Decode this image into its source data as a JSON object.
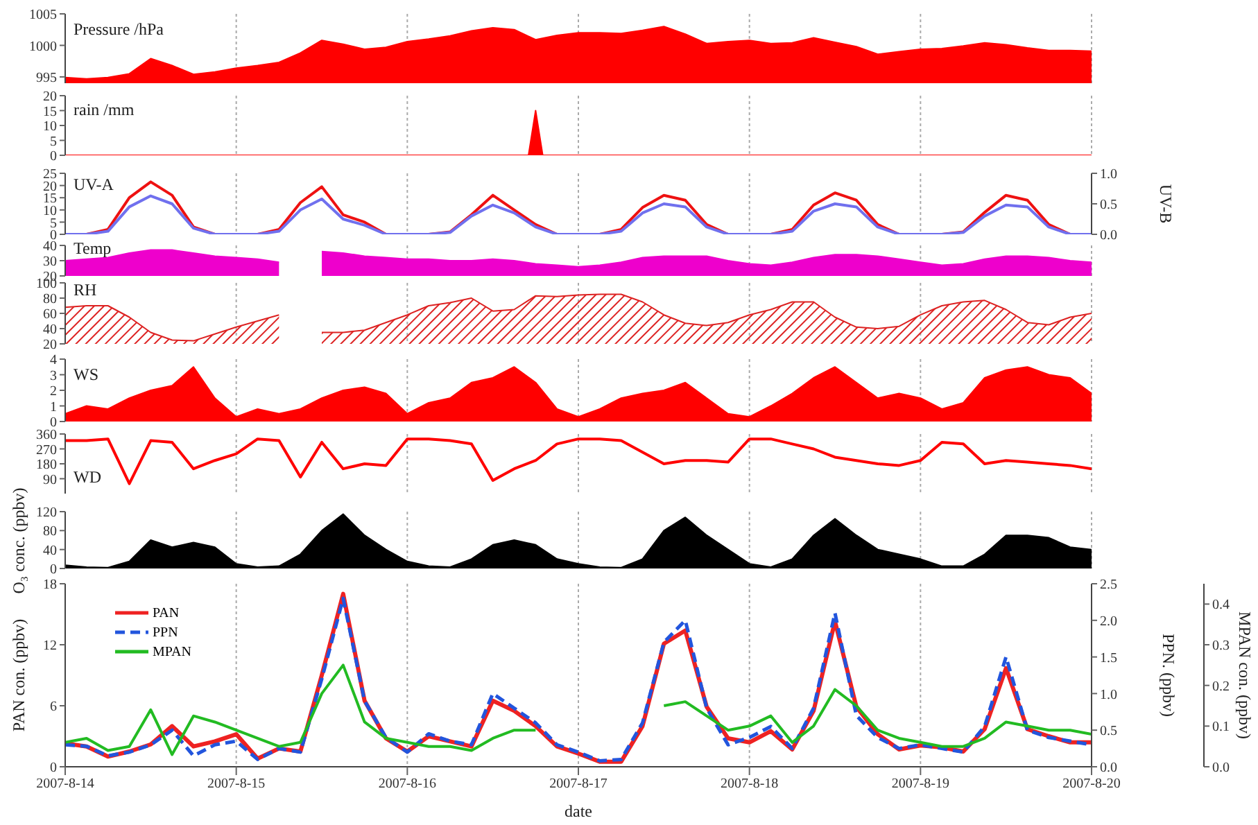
{
  "chart_data": [
    {
      "type": "area",
      "ylabel": "Pressure /hPa",
      "tick_labels": "y",
      "grid": "x",
      "xlim": [
        "2007-08-14",
        "2007-08-20"
      ],
      "xticks": [
        {
          "value": "2007-08-14",
          "label": null
        },
        {
          "value": "2007-08-15",
          "label": null
        },
        {
          "value": "2007-08-16",
          "label": null
        },
        {
          "value": "2007-08-17",
          "label": null
        },
        {
          "value": "2007-08-18",
          "label": null
        },
        {
          "value": "2007-08-19",
          "label": null
        },
        {
          "value": "2007-08-20",
          "label": null
        }
      ],
      "ylim": [
        994,
        1005
      ],
      "yticks": [
        995,
        1000,
        1005
      ],
      "x": [
        "2007-08-14T00:00",
        "2007-08-14T03:00",
        "2007-08-14T06:00",
        "2007-08-14T09:00",
        "2007-08-14T12:00",
        "2007-08-14T15:00",
        "2007-08-14T18:00",
        "2007-08-14T21:00",
        "2007-08-15T00:00",
        "2007-08-15T03:00",
        "2007-08-15T06:00",
        "2007-08-15T09:00",
        "2007-08-15T12:00",
        "2007-08-15T15:00",
        "2007-08-15T18:00",
        "2007-08-15T21:00",
        "2007-08-16T00:00",
        "2007-08-16T03:00",
        "2007-08-16T06:00",
        "2007-08-16T09:00",
        "2007-08-16T12:00",
        "2007-08-16T15:00",
        "2007-08-16T18:00",
        "2007-08-16T21:00",
        "2007-08-17T00:00",
        "2007-08-17T03:00",
        "2007-08-17T06:00",
        "2007-08-17T09:00",
        "2007-08-17T12:00",
        "2007-08-17T15:00",
        "2007-08-17T18:00",
        "2007-08-17T21:00",
        "2007-08-18T00:00",
        "2007-08-18T03:00",
        "2007-08-18T06:00",
        "2007-08-18T09:00",
        "2007-08-18T12:00",
        "2007-08-18T15:00",
        "2007-08-18T18:00",
        "2007-08-18T21:00",
        "2007-08-19T00:00",
        "2007-08-19T03:00",
        "2007-08-19T06:00",
        "2007-08-19T09:00",
        "2007-08-19T12:00",
        "2007-08-19T15:00",
        "2007-08-19T18:00",
        "2007-08-19T21:00",
        "2007-08-20T00:00"
      ],
      "series": [
        {
          "color": "#ff0000",
          "values": [
            994.9,
            994.7,
            994.9,
            995.5,
            997.9,
            996.8,
            995.4,
            995.8,
            996.4,
            996.8,
            997.3,
            998.8,
            1000.8,
            1000.2,
            999.4,
            999.7,
            1000.6,
            1001.0,
            1001.5,
            1002.3,
            1002.8,
            1002.5,
            1000.9,
            1001.6,
            1002.0,
            1002.0,
            1001.9,
            1002.4,
            1003.0,
            1001.8,
            1000.3,
            1000.6,
            1000.8,
            1000.3,
            1000.4,
            1001.2,
            1000.5,
            999.8,
            998.6,
            999.0,
            999.4,
            999.5,
            999.9,
            1000.4,
            1000.1,
            999.6,
            999.2,
            999.2,
            999.1
          ]
        }
      ]
    },
    {
      "type": "area",
      "ylabel": "rain /mm",
      "tick_labels": "y",
      "grid": "x",
      "xlim": [
        "2007-08-14",
        "2007-08-20"
      ],
      "xticks": [
        {
          "value": "2007-08-14",
          "label": null
        },
        {
          "value": "2007-08-15",
          "label": null
        },
        {
          "value": "2007-08-16",
          "label": null
        },
        {
          "value": "2007-08-17",
          "label": null
        },
        {
          "value": "2007-08-18",
          "label": null
        },
        {
          "value": "2007-08-19",
          "label": null
        },
        {
          "value": "2007-08-20",
          "label": null
        }
      ],
      "ylim": [
        0,
        20
      ],
      "yticks": [
        0,
        5,
        10,
        15,
        20
      ],
      "x": [
        "2007-08-14T00:00",
        "2007-08-16T17:00",
        "2007-08-16T18:00",
        "2007-08-16T19:00",
        "2007-08-20T00:00"
      ],
      "series": [
        {
          "color": "#ff0000",
          "values": [
            0,
            0,
            15,
            0,
            0
          ]
        }
      ]
    },
    {
      "type": "line",
      "ylabel": "UV-A",
      "y2label": "UV-B",
      "tick_labels": "y",
      "grid": "x",
      "xlim": [
        "2007-08-14",
        "2007-08-20"
      ],
      "xticks": [
        {
          "value": "2007-08-14",
          "label": null
        },
        {
          "value": "2007-08-15",
          "label": null
        },
        {
          "value": "2007-08-16",
          "label": null
        },
        {
          "value": "2007-08-17",
          "label": null
        },
        {
          "value": "2007-08-18",
          "label": null
        },
        {
          "value": "2007-08-19",
          "label": null
        },
        {
          "value": "2007-08-20",
          "label": null
        }
      ],
      "ylim": [
        0,
        25
      ],
      "yticks": [
        0,
        5,
        10,
        15,
        20,
        25
      ],
      "y2lim": [
        0,
        1
      ],
      "y2ticks": [
        {
          "value": 0,
          "label": "0.0"
        },
        {
          "value": 0.5,
          "label": "0.5"
        },
        {
          "value": 1,
          "label": "1.0"
        }
      ],
      "x": [
        "2007-08-14T00:00",
        "2007-08-14T03:00",
        "2007-08-14T06:00",
        "2007-08-14T09:00",
        "2007-08-14T12:00",
        "2007-08-14T15:00",
        "2007-08-14T18:00",
        "2007-08-14T21:00",
        "2007-08-15T00:00",
        "2007-08-15T03:00",
        "2007-08-15T06:00",
        "2007-08-15T09:00",
        "2007-08-15T12:00",
        "2007-08-15T15:00",
        "2007-08-15T18:00",
        "2007-08-15T21:00",
        "2007-08-16T00:00",
        "2007-08-16T03:00",
        "2007-08-16T06:00",
        "2007-08-16T09:00",
        "2007-08-16T12:00",
        "2007-08-16T15:00",
        "2007-08-16T18:00",
        "2007-08-16T21:00",
        "2007-08-17T00:00",
        "2007-08-17T03:00",
        "2007-08-17T06:00",
        "2007-08-17T09:00",
        "2007-08-17T12:00",
        "2007-08-17T15:00",
        "2007-08-17T18:00",
        "2007-08-17T21:00",
        "2007-08-18T00:00",
        "2007-08-18T03:00",
        "2007-08-18T06:00",
        "2007-08-18T09:00",
        "2007-08-18T12:00",
        "2007-08-18T15:00",
        "2007-08-18T18:00",
        "2007-08-18T21:00",
        "2007-08-19T00:00",
        "2007-08-19T03:00",
        "2007-08-19T06:00",
        "2007-08-19T09:00",
        "2007-08-19T12:00",
        "2007-08-19T15:00",
        "2007-08-19T18:00",
        "2007-08-19T21:00",
        "2007-08-20T00:00"
      ],
      "series": [
        {
          "color": "#ee1111",
          "values": [
            0,
            0,
            2,
            15,
            21.5,
            16,
            3,
            0,
            0,
            0,
            2,
            13,
            19.5,
            8,
            5,
            0,
            0,
            0,
            1,
            8,
            16,
            10,
            4,
            0,
            0,
            0,
            2,
            11,
            16,
            14,
            4,
            0,
            0,
            0,
            2,
            12,
            17,
            14,
            4,
            0,
            0,
            0,
            1,
            9,
            16,
            14,
            4,
            0,
            0
          ]
        },
        {
          "color": "#7070ee",
          "axis": "y2",
          "values": [
            0,
            0,
            0.05,
            0.45,
            0.63,
            0.5,
            0.1,
            0,
            0,
            0,
            0.05,
            0.4,
            0.58,
            0.25,
            0.15,
            0,
            0,
            0,
            0.03,
            0.3,
            0.48,
            0.35,
            0.12,
            0,
            0,
            0,
            0.05,
            0.35,
            0.5,
            0.45,
            0.12,
            0,
            0,
            0,
            0.05,
            0.38,
            0.5,
            0.45,
            0.12,
            0,
            0,
            0,
            0.03,
            0.3,
            0.48,
            0.45,
            0.12,
            0,
            0
          ]
        }
      ]
    },
    {
      "type": "area",
      "ylabel": "Temp",
      "tick_labels": "y",
      "grid": "x",
      "xlim": [
        "2007-08-14",
        "2007-08-20"
      ],
      "xticks": [
        {
          "value": "2007-08-14",
          "label": null
        },
        {
          "value": "2007-08-15",
          "label": null
        },
        {
          "value": "2007-08-16",
          "label": null
        },
        {
          "value": "2007-08-17",
          "label": null
        },
        {
          "value": "2007-08-18",
          "label": null
        },
        {
          "value": "2007-08-19",
          "label": null
        },
        {
          "value": "2007-08-20",
          "label": null
        }
      ],
      "ylim": [
        20,
        40
      ],
      "yticks": [
        20,
        30,
        40
      ],
      "x": [
        "2007-08-14T00:00",
        "2007-08-14T03:00",
        "2007-08-14T06:00",
        "2007-08-14T09:00",
        "2007-08-14T12:00",
        "2007-08-14T15:00",
        "2007-08-14T18:00",
        "2007-08-14T21:00",
        "2007-08-15T00:00",
        "2007-08-15T03:00",
        "2007-08-15T06:00",
        "2007-08-15T09:00",
        "2007-08-15T12:00",
        "2007-08-15T15:00",
        "2007-08-15T18:00",
        "2007-08-15T21:00",
        "2007-08-16T00:00",
        "2007-08-16T03:00",
        "2007-08-16T06:00",
        "2007-08-16T09:00",
        "2007-08-16T12:00",
        "2007-08-16T15:00",
        "2007-08-16T18:00",
        "2007-08-16T21:00",
        "2007-08-17T00:00",
        "2007-08-17T03:00",
        "2007-08-17T06:00",
        "2007-08-17T09:00",
        "2007-08-17T12:00",
        "2007-08-17T15:00",
        "2007-08-17T18:00",
        "2007-08-17T21:00",
        "2007-08-18T00:00",
        "2007-08-18T03:00",
        "2007-08-18T06:00",
        "2007-08-18T09:00",
        "2007-08-18T12:00",
        "2007-08-18T15:00",
        "2007-08-18T18:00",
        "2007-08-18T21:00",
        "2007-08-19T00:00",
        "2007-08-19T03:00",
        "2007-08-19T06:00",
        "2007-08-19T09:00",
        "2007-08-19T12:00",
        "2007-08-19T15:00",
        "2007-08-19T18:00",
        "2007-08-19T21:00",
        "2007-08-20T00:00"
      ],
      "series": [
        {
          "color": "#ee00cc",
          "values": [
            30,
            31,
            32,
            35,
            37,
            37,
            35,
            33,
            32,
            31,
            29,
            null,
            36,
            35,
            33,
            32,
            31,
            31,
            30,
            30,
            31,
            30,
            28,
            27,
            26,
            27,
            29,
            32,
            33,
            33,
            33,
            30,
            28,
            27,
            29,
            32,
            34,
            34,
            33,
            31,
            29,
            27,
            28,
            31,
            33,
            33,
            32,
            30,
            29
          ]
        }
      ]
    },
    {
      "type": "area",
      "ylabel": "RH",
      "tick_labels": "y",
      "grid": "x",
      "xlim": [
        "2007-08-14",
        "2007-08-20"
      ],
      "xticks": [
        {
          "value": "2007-08-14",
          "label": null
        },
        {
          "value": "2007-08-15",
          "label": null
        },
        {
          "value": "2007-08-16",
          "label": null
        },
        {
          "value": "2007-08-17",
          "label": null
        },
        {
          "value": "2007-08-18",
          "label": null
        },
        {
          "value": "2007-08-19",
          "label": null
        },
        {
          "value": "2007-08-20",
          "label": null
        }
      ],
      "ylim": [
        20,
        100
      ],
      "yticks": [
        20,
        40,
        60,
        80,
        100
      ],
      "x": [
        "2007-08-14T00:00",
        "2007-08-14T03:00",
        "2007-08-14T06:00",
        "2007-08-14T09:00",
        "2007-08-14T12:00",
        "2007-08-14T15:00",
        "2007-08-14T18:00",
        "2007-08-14T21:00",
        "2007-08-15T00:00",
        "2007-08-15T03:00",
        "2007-08-15T06:00",
        "2007-08-15T09:00",
        "2007-08-15T12:00",
        "2007-08-15T15:00",
        "2007-08-15T18:00",
        "2007-08-15T21:00",
        "2007-08-16T00:00",
        "2007-08-16T03:00",
        "2007-08-16T06:00",
        "2007-08-16T09:00",
        "2007-08-16T12:00",
        "2007-08-16T15:00",
        "2007-08-16T18:00",
        "2007-08-16T21:00",
        "2007-08-17T00:00",
        "2007-08-17T03:00",
        "2007-08-17T06:00",
        "2007-08-17T09:00",
        "2007-08-17T12:00",
        "2007-08-17T15:00",
        "2007-08-17T18:00",
        "2007-08-17T21:00",
        "2007-08-18T00:00",
        "2007-08-18T03:00",
        "2007-08-18T06:00",
        "2007-08-18T09:00",
        "2007-08-18T12:00",
        "2007-08-18T15:00",
        "2007-08-18T18:00",
        "2007-08-18T21:00",
        "2007-08-19T00:00",
        "2007-08-19T03:00",
        "2007-08-19T06:00",
        "2007-08-19T09:00",
        "2007-08-19T12:00",
        "2007-08-19T15:00",
        "2007-08-19T18:00",
        "2007-08-19T21:00",
        "2007-08-20T00:00"
      ],
      "series": [
        {
          "color": "#dd2222",
          "values": [
            68,
            70,
            70,
            55,
            35,
            25,
            24,
            33,
            42,
            50,
            58,
            null,
            35,
            35,
            38,
            48,
            58,
            70,
            74,
            80,
            63,
            65,
            83,
            82,
            84,
            85,
            85,
            75,
            58,
            47,
            44,
            48,
            58,
            65,
            75,
            75,
            55,
            42,
            40,
            43,
            58,
            70,
            75,
            77,
            65,
            48,
            45,
            55,
            60
          ]
        }
      ]
    },
    {
      "type": "area",
      "ylabel": "WS",
      "tick_labels": "y",
      "grid": "x",
      "xlim": [
        "2007-08-14",
        "2007-08-20"
      ],
      "xticks": [
        {
          "value": "2007-08-14",
          "label": null
        },
        {
          "value": "2007-08-15",
          "label": null
        },
        {
          "value": "2007-08-16",
          "label": null
        },
        {
          "value": "2007-08-17",
          "label": null
        },
        {
          "value": "2007-08-18",
          "label": null
        },
        {
          "value": "2007-08-19",
          "label": null
        },
        {
          "value": "2007-08-20",
          "label": null
        }
      ],
      "ylim": [
        0,
        4
      ],
      "yticks": [
        0,
        1,
        2,
        3,
        4
      ],
      "x": [
        "2007-08-14T00:00",
        "2007-08-14T03:00",
        "2007-08-14T06:00",
        "2007-08-14T09:00",
        "2007-08-14T12:00",
        "2007-08-14T15:00",
        "2007-08-14T18:00",
        "2007-08-14T21:00",
        "2007-08-15T00:00",
        "2007-08-15T03:00",
        "2007-08-15T06:00",
        "2007-08-15T09:00",
        "2007-08-15T12:00",
        "2007-08-15T15:00",
        "2007-08-15T18:00",
        "2007-08-15T21:00",
        "2007-08-16T00:00",
        "2007-08-16T03:00",
        "2007-08-16T06:00",
        "2007-08-16T09:00",
        "2007-08-16T12:00",
        "2007-08-16T15:00",
        "2007-08-16T18:00",
        "2007-08-16T21:00",
        "2007-08-17T00:00",
        "2007-08-17T03:00",
        "2007-08-17T06:00",
        "2007-08-17T09:00",
        "2007-08-17T12:00",
        "2007-08-17T15:00",
        "2007-08-17T18:00",
        "2007-08-17T21:00",
        "2007-08-18T00:00",
        "2007-08-18T03:00",
        "2007-08-18T06:00",
        "2007-08-18T09:00",
        "2007-08-18T12:00",
        "2007-08-18T15:00",
        "2007-08-18T18:00",
        "2007-08-18T21:00",
        "2007-08-19T00:00",
        "2007-08-19T03:00",
        "2007-08-19T06:00",
        "2007-08-19T09:00",
        "2007-08-19T12:00",
        "2007-08-19T15:00",
        "2007-08-19T18:00",
        "2007-08-19T21:00",
        "2007-08-20T00:00"
      ],
      "series": [
        {
          "color": "#ff0000",
          "values": [
            0.5,
            1,
            0.8,
            1.5,
            2,
            2.3,
            3.5,
            1.5,
            0.3,
            0.8,
            0.5,
            0.8,
            1.5,
            2,
            2.2,
            1.8,
            0.5,
            1.2,
            1.5,
            2.5,
            2.8,
            3.5,
            2.5,
            0.8,
            0.3,
            0.8,
            1.5,
            1.8,
            2,
            2.5,
            1.5,
            0.5,
            0.3,
            1,
            1.8,
            2.8,
            3.5,
            2.5,
            1.5,
            1.8,
            1.5,
            0.8,
            1.2,
            2.8,
            3.3,
            3.5,
            3,
            2.8,
            1.8
          ]
        }
      ]
    },
    {
      "type": "line",
      "ylabel": "WD",
      "tick_labels": "y",
      "grid": "x",
      "xlim": [
        "2007-08-14",
        "2007-08-20"
      ],
      "xticks": [
        {
          "value": "2007-08-14",
          "label": null
        },
        {
          "value": "2007-08-15",
          "label": null
        },
        {
          "value": "2007-08-16",
          "label": null
        },
        {
          "value": "2007-08-17",
          "label": null
        },
        {
          "value": "2007-08-18",
          "label": null
        },
        {
          "value": "2007-08-19",
          "label": null
        },
        {
          "value": "2007-08-20",
          "label": null
        }
      ],
      "ylim": [
        0,
        360
      ],
      "yticks": [
        90,
        180,
        270,
        360
      ],
      "x": [
        "2007-08-14T00:00",
        "2007-08-14T03:00",
        "2007-08-14T06:00",
        "2007-08-14T09:00",
        "2007-08-14T12:00",
        "2007-08-14T15:00",
        "2007-08-14T18:00",
        "2007-08-14T21:00",
        "2007-08-15T00:00",
        "2007-08-15T03:00",
        "2007-08-15T06:00",
        "2007-08-15T09:00",
        "2007-08-15T12:00",
        "2007-08-15T15:00",
        "2007-08-15T18:00",
        "2007-08-15T21:00",
        "2007-08-16T00:00",
        "2007-08-16T03:00",
        "2007-08-16T06:00",
        "2007-08-16T09:00",
        "2007-08-16T12:00",
        "2007-08-16T15:00",
        "2007-08-16T18:00",
        "2007-08-16T21:00",
        "2007-08-17T00:00",
        "2007-08-17T03:00",
        "2007-08-17T06:00",
        "2007-08-17T09:00",
        "2007-08-17T12:00",
        "2007-08-17T15:00",
        "2007-08-17T18:00",
        "2007-08-17T21:00",
        "2007-08-18T00:00",
        "2007-08-18T03:00",
        "2007-08-18T06:00",
        "2007-08-18T09:00",
        "2007-08-18T12:00",
        "2007-08-18T15:00",
        "2007-08-18T18:00",
        "2007-08-18T21:00",
        "2007-08-19T00:00",
        "2007-08-19T03:00",
        "2007-08-19T06:00",
        "2007-08-19T09:00",
        "2007-08-19T12:00",
        "2007-08-19T15:00",
        "2007-08-19T18:00",
        "2007-08-19T21:00",
        "2007-08-20T00:00"
      ],
      "series": [
        {
          "color": "#ff0000",
          "values": [
            320,
            320,
            330,
            60,
            320,
            310,
            150,
            200,
            240,
            330,
            320,
            100,
            310,
            150,
            180,
            170,
            330,
            330,
            320,
            300,
            80,
            150,
            200,
            300,
            330,
            330,
            320,
            250,
            180,
            200,
            200,
            190,
            330,
            330,
            300,
            270,
            220,
            200,
            180,
            170,
            200,
            310,
            300,
            180,
            200,
            190,
            180,
            170,
            150
          ]
        }
      ]
    },
    {
      "type": "area",
      "ylabel": "O₃ conc. (ppbv)",
      "tick_labels": "y",
      "grid": "x",
      "xlim": [
        "2007-08-14",
        "2007-08-20"
      ],
      "xticks": [
        {
          "value": "2007-08-14",
          "label": null
        },
        {
          "value": "2007-08-15",
          "label": null
        },
        {
          "value": "2007-08-16",
          "label": null
        },
        {
          "value": "2007-08-17",
          "label": null
        },
        {
          "value": "2007-08-18",
          "label": null
        },
        {
          "value": "2007-08-19",
          "label": null
        },
        {
          "value": "2007-08-20",
          "label": null
        }
      ],
      "ylim": [
        0,
        120
      ],
      "yticks": [
        0,
        40,
        80,
        120
      ],
      "x": [
        "2007-08-14T00:00",
        "2007-08-14T03:00",
        "2007-08-14T06:00",
        "2007-08-14T09:00",
        "2007-08-14T12:00",
        "2007-08-14T15:00",
        "2007-08-14T18:00",
        "2007-08-14T21:00",
        "2007-08-15T00:00",
        "2007-08-15T03:00",
        "2007-08-15T06:00",
        "2007-08-15T09:00",
        "2007-08-15T12:00",
        "2007-08-15T15:00",
        "2007-08-15T18:00",
        "2007-08-15T21:00",
        "2007-08-16T00:00",
        "2007-08-16T03:00",
        "2007-08-16T06:00",
        "2007-08-16T09:00",
        "2007-08-16T12:00",
        "2007-08-16T15:00",
        "2007-08-16T18:00",
        "2007-08-16T21:00",
        "2007-08-17T00:00",
        "2007-08-17T03:00",
        "2007-08-17T06:00",
        "2007-08-17T09:00",
        "2007-08-17T12:00",
        "2007-08-17T15:00",
        "2007-08-17T18:00",
        "2007-08-17T21:00",
        "2007-08-18T00:00",
        "2007-08-18T03:00",
        "2007-08-18T06:00",
        "2007-08-18T09:00",
        "2007-08-18T12:00",
        "2007-08-18T15:00",
        "2007-08-18T18:00",
        "2007-08-18T21:00",
        "2007-08-19T00:00",
        "2007-08-19T03:00",
        "2007-08-19T06:00",
        "2007-08-19T09:00",
        "2007-08-19T12:00",
        "2007-08-19T15:00",
        "2007-08-19T18:00",
        "2007-08-19T21:00",
        "2007-08-20T00:00"
      ],
      "series": [
        {
          "color": "#000000",
          "values": [
            7,
            3,
            2,
            15,
            60,
            45,
            55,
            45,
            10,
            3,
            5,
            30,
            80,
            115,
            70,
            40,
            15,
            5,
            3,
            20,
            50,
            60,
            50,
            20,
            10,
            3,
            2,
            20,
            80,
            108,
            70,
            40,
            10,
            3,
            20,
            70,
            105,
            70,
            40,
            30,
            20,
            5,
            5,
            30,
            70,
            70,
            65,
            45,
            40
          ]
        }
      ]
    },
    {
      "type": "line",
      "xlabel": "date",
      "ylabel": "PAN con. (ppbv)",
      "y2label": "PPN. (ppbv)",
      "y3label": "MPAN con. (ppbv)",
      "legend": "top left",
      "grid": "x",
      "xlim": [
        "2007-08-14",
        "2007-08-20"
      ],
      "xticks": [
        {
          "value": "2007-08-14",
          "label": "2007-8-14"
        },
        {
          "value": "2007-08-15",
          "label": "2007-8-15"
        },
        {
          "value": "2007-08-16",
          "label": "2007-8-16"
        },
        {
          "value": "2007-08-17",
          "label": "2007-8-17"
        },
        {
          "value": "2007-08-18",
          "label": "2007-8-18"
        },
        {
          "value": "2007-08-19",
          "label": "2007-8-19"
        },
        {
          "value": "2007-08-20",
          "label": "2007-8-20"
        }
      ],
      "ylim": [
        0,
        18
      ],
      "yticks": [
        0,
        6,
        12,
        18
      ],
      "y2lim": [
        0,
        2.5
      ],
      "y2ticks": [
        {
          "value": 0,
          "label": "0.0"
        },
        {
          "value": 0.5,
          "label": "0.5"
        },
        {
          "value": 1,
          "label": "1.0"
        },
        {
          "value": 1.5,
          "label": "1.5"
        },
        {
          "value": 2,
          "label": "2.0"
        },
        {
          "value": 2.5,
          "label": "2.5"
        }
      ],
      "y3lim": [
        0,
        0.45
      ],
      "y3ticks": [
        {
          "value": 0,
          "label": "0.0"
        },
        {
          "value": 0.1,
          "label": "0.1"
        },
        {
          "value": 0.2,
          "label": "0.2"
        },
        {
          "value": 0.3,
          "label": "0.3"
        },
        {
          "value": 0.4,
          "label": "0.4"
        }
      ],
      "x": [
        "2007-08-14T00:00",
        "2007-08-14T03:00",
        "2007-08-14T06:00",
        "2007-08-14T09:00",
        "2007-08-14T12:00",
        "2007-08-14T15:00",
        "2007-08-14T18:00",
        "2007-08-14T21:00",
        "2007-08-15T00:00",
        "2007-08-15T03:00",
        "2007-08-15T06:00",
        "2007-08-15T09:00",
        "2007-08-15T12:00",
        "2007-08-15T15:00",
        "2007-08-15T18:00",
        "2007-08-15T21:00",
        "2007-08-16T00:00",
        "2007-08-16T03:00",
        "2007-08-16T06:00",
        "2007-08-16T09:00",
        "2007-08-16T12:00",
        "2007-08-16T15:00",
        "2007-08-16T18:00",
        "2007-08-16T21:00",
        "2007-08-17T00:00",
        "2007-08-17T03:00",
        "2007-08-17T06:00",
        "2007-08-17T09:00",
        "2007-08-17T12:00",
        "2007-08-17T15:00",
        "2007-08-17T18:00",
        "2007-08-17T21:00",
        "2007-08-18T00:00",
        "2007-08-18T03:00",
        "2007-08-18T06:00",
        "2007-08-18T09:00",
        "2007-08-18T12:00",
        "2007-08-18T15:00",
        "2007-08-18T18:00",
        "2007-08-18T21:00",
        "2007-08-19T00:00",
        "2007-08-19T03:00",
        "2007-08-19T06:00",
        "2007-08-19T09:00",
        "2007-08-19T12:00",
        "2007-08-19T15:00",
        "2007-08-19T18:00",
        "2007-08-19T21:00",
        "2007-08-20T00:00"
      ],
      "series": [
        {
          "name": "PAN",
          "color": "#ee2222",
          "line_style": "solid",
          "values": [
            2.3,
            2,
            1,
            1.5,
            2.2,
            4,
            2,
            2.5,
            3.2,
            0.8,
            1.8,
            1.5,
            9,
            17,
            6.5,
            2.8,
            1.5,
            3,
            2.5,
            2,
            6.5,
            5.5,
            4,
            2,
            1.3,
            0.5,
            0.5,
            4,
            12.1,
            13.4,
            5.9,
            2.8,
            2.4,
            3.5,
            1.7,
            5.5,
            14.3,
            5.9,
            3.2,
            1.7,
            2.1,
            1.9,
            1.5,
            3.7,
            9.7,
            3.7,
            3,
            2.4,
            2.4
          ]
        },
        {
          "name": "PPN",
          "color": "#2255dd",
          "axis": "y2",
          "line_style": "dashed",
          "values": [
            0.3,
            0.28,
            0.15,
            0.2,
            0.3,
            0.5,
            0.15,
            0.3,
            0.35,
            0.1,
            0.25,
            0.2,
            1.2,
            2.3,
            0.9,
            0.4,
            0.2,
            0.45,
            0.35,
            0.3,
            1.0,
            0.8,
            0.6,
            0.3,
            0.2,
            0.08,
            0.1,
            0.6,
            1.7,
            2.0,
            0.8,
            0.3,
            0.4,
            0.55,
            0.25,
            0.8,
            2.1,
            0.7,
            0.4,
            0.25,
            0.3,
            0.25,
            0.2,
            0.55,
            1.5,
            0.5,
            0.4,
            0.35,
            0.3
          ]
        },
        {
          "name": "MPAN",
          "color": "#22bb22",
          "axis": "y3",
          "line_style": "solid",
          "values": [
            0.06,
            0.07,
            0.04,
            0.05,
            0.14,
            0.03,
            0.125,
            0.11,
            0.09,
            0.07,
            0.05,
            0.06,
            0.18,
            0.25,
            0.11,
            0.07,
            0.06,
            0.05,
            0.05,
            0.04,
            0.07,
            0.09,
            0.09,
            null,
            null,
            null,
            null,
            null,
            0.15,
            0.16,
            0.125,
            0.09,
            0.1,
            0.125,
            0.06,
            0.1,
            0.19,
            0.15,
            0.09,
            0.07,
            0.06,
            0.05,
            0.05,
            0.07,
            0.11,
            0.1,
            0.09,
            0.09,
            0.08
          ]
        }
      ]
    }
  ]
}
